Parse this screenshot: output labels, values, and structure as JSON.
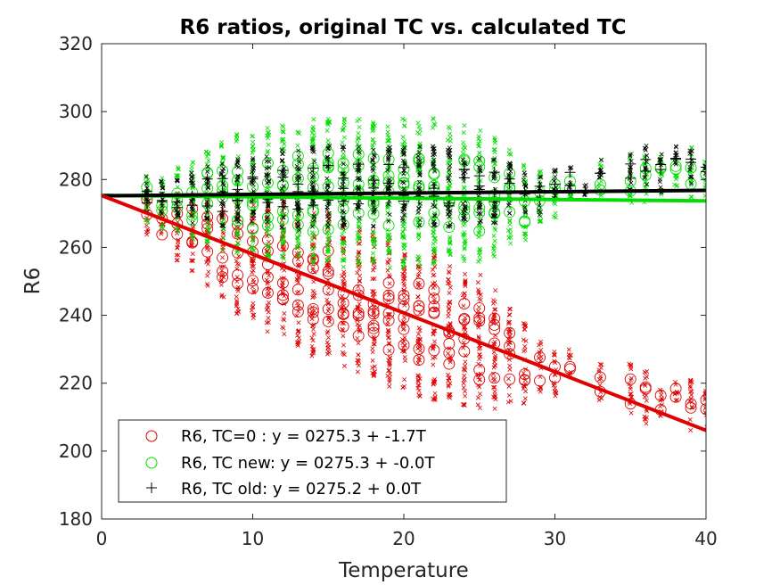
{
  "chart_data": {
    "type": "scatter",
    "title": "R6 ratios, original TC vs. calculated TC",
    "xlabel": "Temperature",
    "ylabel": "R6",
    "xlim": [
      0,
      40
    ],
    "ylim": [
      180,
      320
    ],
    "x_ticks": [
      "0",
      "10",
      "20",
      "30",
      "40"
    ],
    "y_ticks": [
      "180",
      "200",
      "220",
      "240",
      "260",
      "280",
      "300",
      "320"
    ],
    "grid": false,
    "legend_position": "bottom-left",
    "series": [
      {
        "name": "R6, TC=0  :  y = 0275.3 + -1.7T",
        "color": "#e00000",
        "marker": "circle",
        "fit": {
          "intercept": 275.3,
          "slope": -1.73
        },
        "temperatures": [
          3,
          4,
          5,
          6,
          7,
          8,
          9,
          10,
          11,
          12,
          13,
          14,
          15,
          16,
          17,
          18,
          19,
          20,
          21,
          22,
          23,
          24,
          25,
          26,
          27,
          28,
          29,
          30,
          31,
          33,
          35,
          36,
          37,
          38,
          39,
          40
        ],
        "centers": [
          270,
          268,
          266,
          265,
          262,
          260,
          258,
          257,
          255,
          254,
          251,
          250,
          249,
          247,
          245,
          244,
          241,
          240,
          238,
          237,
          235,
          233,
          232,
          230,
          228,
          226,
          225,
          222,
          226,
          220,
          218,
          216,
          215,
          217,
          213,
          212
        ],
        "spread": [
          8,
          8,
          10,
          12,
          14,
          16,
          18,
          18,
          20,
          20,
          20,
          22,
          22,
          22,
          22,
          22,
          22,
          22,
          22,
          22,
          20,
          20,
          20,
          18,
          14,
          12,
          8,
          8,
          4,
          6,
          8,
          8,
          6,
          4,
          8,
          6
        ]
      },
      {
        "name": "R6, TC new: y = 0275.3 + -0.0T",
        "color": "#00dd00",
        "marker": "circle",
        "fit": {
          "intercept": 275.3,
          "slope": -0.04
        },
        "temperatures": [
          3,
          4,
          5,
          6,
          7,
          8,
          9,
          10,
          11,
          12,
          13,
          14,
          15,
          16,
          17,
          18,
          19,
          20,
          21,
          22,
          23,
          24,
          25,
          26,
          27,
          28,
          29,
          30,
          31,
          33,
          35,
          36,
          37,
          38,
          39,
          40
        ],
        "centers": [
          274,
          273,
          274,
          274,
          275,
          275,
          276,
          275,
          276,
          276,
          276,
          276,
          276,
          276,
          276,
          276,
          276,
          276,
          276,
          276,
          276,
          276,
          275,
          275,
          275,
          274,
          275,
          276,
          278,
          280,
          280,
          281,
          281,
          282,
          282,
          281
        ],
        "spread": [
          8,
          8,
          10,
          12,
          14,
          16,
          18,
          18,
          20,
          20,
          20,
          22,
          22,
          22,
          22,
          22,
          22,
          22,
          22,
          22,
          20,
          20,
          20,
          18,
          14,
          12,
          8,
          8,
          4,
          6,
          8,
          8,
          6,
          4,
          8,
          6
        ]
      },
      {
        "name": "R6, TC old: y = 0275.2 + 0.0T",
        "color": "#000000",
        "marker": "plus",
        "fit": {
          "intercept": 275.2,
          "slope": 0.04
        },
        "temperatures": [
          3,
          4,
          5,
          6,
          7,
          8,
          9,
          10,
          11,
          12,
          13,
          14,
          15,
          16,
          17,
          18,
          19,
          20,
          21,
          22,
          23,
          24,
          25,
          26,
          27,
          28,
          29,
          30,
          31,
          32,
          33,
          35,
          36,
          37,
          38,
          39,
          40
        ],
        "centers": [
          275,
          274,
          275,
          275,
          276,
          276,
          277,
          277,
          277,
          277,
          277,
          278,
          278,
          278,
          278,
          278,
          278,
          278,
          278,
          278,
          278,
          278,
          277,
          277,
          277,
          276,
          275,
          277,
          280,
          277,
          284,
          282,
          284,
          282,
          286,
          284,
          282
        ],
        "spread": [
          6,
          6,
          6,
          8,
          8,
          10,
          10,
          10,
          10,
          12,
          12,
          12,
          12,
          12,
          12,
          12,
          12,
          12,
          12,
          12,
          12,
          10,
          10,
          10,
          8,
          6,
          6,
          6,
          4,
          2,
          4,
          6,
          6,
          6,
          4,
          6,
          4
        ]
      }
    ]
  }
}
